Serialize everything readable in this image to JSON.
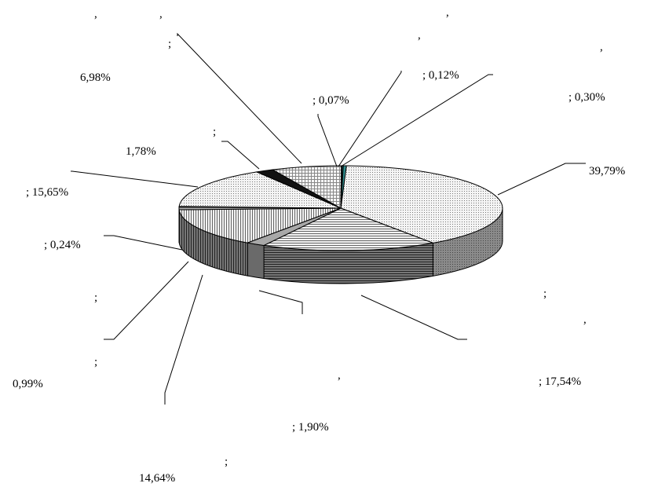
{
  "chart_data": {
    "type": "pie",
    "style": "3d-exploded",
    "title": "",
    "values": [
      39.79,
      17.54,
      1.9,
      14.64,
      0.99,
      0.24,
      15.65,
      1.78,
      6.98,
      0.07,
      0.12,
      0.3
    ],
    "labels": [
      "39,79%",
      "; 17,54%",
      "; 1,90%",
      "14,64%",
      "0,99%",
      "; 0,24%",
      "; 15,65%",
      "1,78%",
      "6,98%",
      "; 0,07%",
      "; 0,12%",
      "; 0,30%"
    ],
    "fills": [
      "dots",
      "hlines",
      "gray",
      "vlines",
      "gray",
      "teal",
      "dots",
      "black",
      "grid",
      "teal",
      "teal",
      "teal"
    ],
    "stray_text": [
      ",",
      ",",
      ",",
      ",",
      ",",
      ";",
      ";",
      ";",
      ";",
      ";",
      ",",
      ",",
      ";",
      ";",
      ";"
    ]
  }
}
